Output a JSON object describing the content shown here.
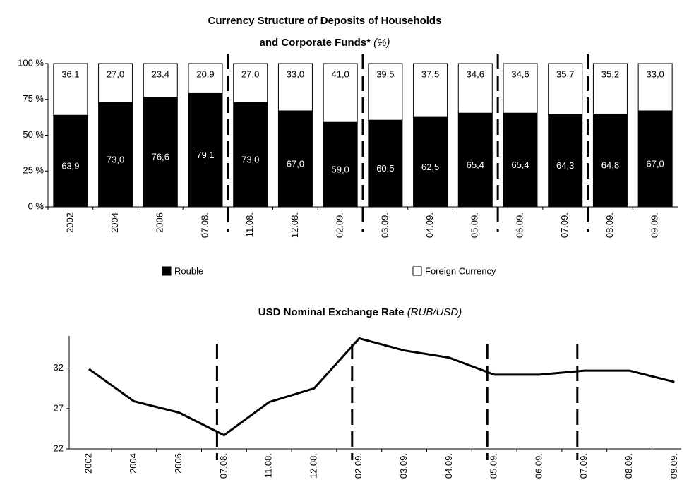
{
  "chart_data": [
    {
      "type": "stacked_bar",
      "title": [
        "Currency Structure of Deposits of Households",
        "and Corporate Funds*"
      ],
      "title_unit": "(%)",
      "categories": [
        "2002",
        "2004",
        "2006",
        "07.08.",
        "11.08.",
        "12.08.",
        "02.09.",
        "03.09.",
        "04.09.",
        "05.09.",
        "06.09.",
        "07.09.",
        "08.09.",
        "09.09."
      ],
      "series": [
        {
          "name": "Rouble",
          "color": "#000000",
          "values": [
            63.9,
            73.0,
            76.6,
            79.1,
            73.0,
            67.0,
            59.0,
            60.5,
            62.5,
            65.4,
            65.4,
            64.3,
            64.8,
            67.0
          ],
          "value_labels": [
            "63,9",
            "73,0",
            "76,6",
            "79,1",
            "73,0",
            "67,0",
            "59,0",
            "60,5",
            "62,5",
            "65,4",
            "65,4",
            "64,3",
            "64,8",
            "67,0"
          ]
        },
        {
          "name": "Foreign Currency",
          "color": "#ffffff",
          "values": [
            36.1,
            27.0,
            23.4,
            20.9,
            27.0,
            33.0,
            41.0,
            39.5,
            37.5,
            34.6,
            34.6,
            35.7,
            35.2,
            33.0
          ],
          "value_labels": [
            "36,1",
            "27,0",
            "23,4",
            "20,9",
            "27,0",
            "33,0",
            "41,0",
            "39,5",
            "37,5",
            "34,6",
            "34,6",
            "35,7",
            "35,2",
            "33,0"
          ]
        }
      ],
      "ylim": [
        0,
        100
      ],
      "yticks": [
        {
          "value": 0,
          "label": "0 %"
        },
        {
          "value": 25,
          "label": "25 %"
        },
        {
          "value": 50,
          "label": "50 %"
        },
        {
          "value": 75,
          "label": "75 %"
        },
        {
          "value": 100,
          "label": "100 %"
        }
      ],
      "legend": "bottom"
    },
    {
      "type": "line",
      "title": [
        "USD Nominal Exchange Rate"
      ],
      "title_unit": "(RUB/USD)",
      "categories": [
        "2002",
        "2004",
        "2006",
        "07.08.",
        "11.08.",
        "12.08.",
        "02.09.",
        "03.09.",
        "04.09.",
        "05.09.",
        "06.09.",
        "07.09.",
        "08.09.",
        "09.09."
      ],
      "values": [
        31.9,
        27.9,
        26.5,
        23.7,
        27.8,
        29.5,
        35.7,
        34.2,
        33.3,
        31.2,
        31.2,
        31.7,
        31.7,
        30.3
      ],
      "color": "#000000",
      "ylim": [
        22,
        36
      ],
      "yticks": [
        22,
        27,
        32
      ]
    }
  ]
}
